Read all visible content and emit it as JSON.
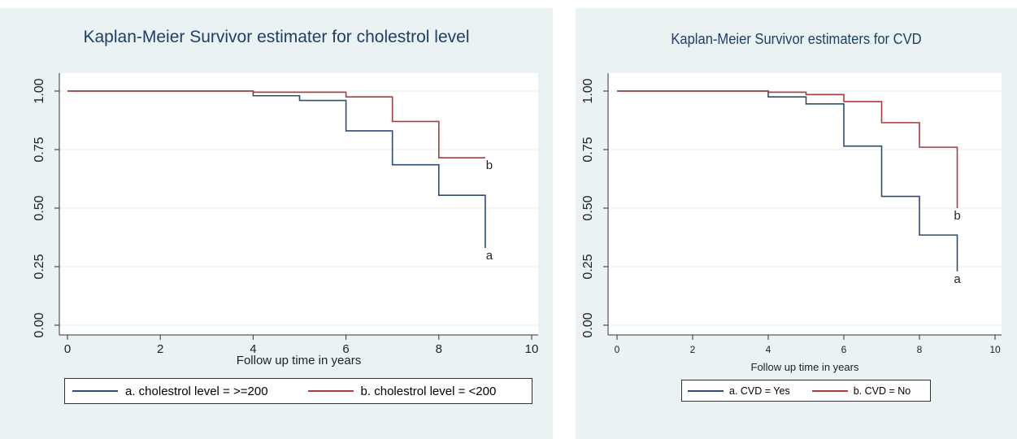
{
  "chart_data": [
    {
      "type": "line",
      "title": "Kaplan-Meier Survivor estimater for cholestrol level",
      "xlabel": "Follow up  time in years",
      "ylabel": "",
      "xlim": [
        0,
        10
      ],
      "ylim": [
        0,
        1
      ],
      "xticks": [
        0,
        2,
        4,
        6,
        8,
        10
      ],
      "yticks": [
        0,
        0.25,
        0.5,
        0.75,
        1
      ],
      "xtick_labels": [
        "0",
        "2",
        "4",
        "6",
        "8",
        "10"
      ],
      "ytick_labels": [
        "0.00",
        "0.25",
        "0.50",
        "0.75",
        "1.00"
      ],
      "grid": true,
      "legend": "bottom",
      "series": [
        {
          "name": "a. cholestrol level = >=200",
          "label": "a",
          "color": "#2b4d73",
          "x": [
            0,
            4,
            5,
            6,
            7,
            8,
            9
          ],
          "y": [
            1.0,
            0.98,
            0.96,
            0.83,
            0.685,
            0.555,
            0.33
          ]
        },
        {
          "name": "b. cholestrol level = <200",
          "label": "b",
          "color": "#a93c3c",
          "x": [
            0,
            4,
            6,
            7,
            8,
            9
          ],
          "y": [
            1.0,
            0.995,
            0.975,
            0.87,
            0.715,
            0.715
          ]
        }
      ]
    },
    {
      "type": "line",
      "title": "Kaplan-Meier Survivor estimaters for CVD",
      "xlabel": "Follow up time in years",
      "ylabel": "",
      "xlim": [
        0,
        10
      ],
      "ylim": [
        0,
        1
      ],
      "xticks": [
        0,
        2,
        4,
        6,
        8,
        10
      ],
      "yticks": [
        0,
        0.25,
        0.5,
        0.75,
        1
      ],
      "xtick_labels": [
        "0",
        "2",
        "4",
        "6",
        "8",
        "10"
      ],
      "ytick_labels": [
        "0.00",
        "0.25",
        "0.50",
        "0.75",
        "1.00"
      ],
      "grid": true,
      "legend": "bottom",
      "series": [
        {
          "name": "a. CVD = Yes",
          "label": "a",
          "color": "#2b4d73",
          "x": [
            0,
            4,
            5,
            6,
            7,
            8,
            9
          ],
          "y": [
            1.0,
            0.975,
            0.945,
            0.765,
            0.55,
            0.385,
            0.23
          ]
        },
        {
          "name": "b. CVD = No",
          "label": "b",
          "color": "#a93c3c",
          "x": [
            0,
            4,
            5,
            6,
            7,
            8,
            9
          ],
          "y": [
            1.0,
            0.995,
            0.985,
            0.955,
            0.865,
            0.76,
            0.5
          ]
        }
      ]
    }
  ]
}
